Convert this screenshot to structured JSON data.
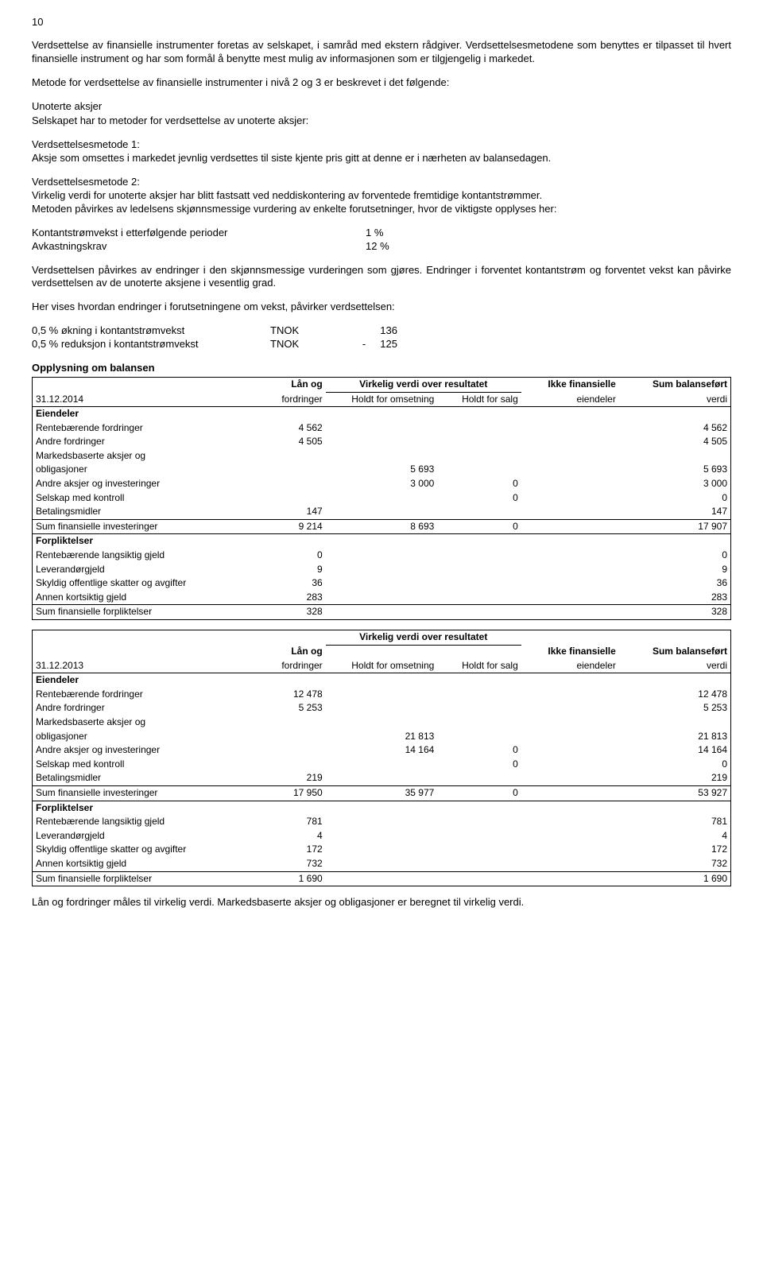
{
  "pageNumber": "10",
  "paragraphs": {
    "p1": "Verdsettelse av finansielle instrumenter foretas av selskapet, i samråd med ekstern rådgiver. Verdsettelsesmetodene som benyttes er tilpasset til hvert finansielle instrument og har som formål å benytte mest mulig av informasjonen som er tilgjengelig i markedet.",
    "p2": "Metode for verdsettelse av finansielle instrumenter i nivå 2 og 3 er beskrevet i det følgende:",
    "unoterte_title": "Unoterte aksjer",
    "unoterte_intro": "Selskapet har to metoder for verdsettelse av unoterte aksjer:",
    "method1_title": "Verdsettelsesmetode 1:",
    "method1_text": "Aksje som omsettes i markedet jevnlig verdsettes til siste kjente pris gitt at denne er i nærheten av balansedagen.",
    "method2_title": "Verdsettelsesmetode 2:",
    "method2_text1": "Virkelig verdi for unoterte aksjer har blitt fastsatt ved neddiskontering av forventede fremtidige kontantstrømmer.",
    "method2_text2": "Metoden påvirkes av ledelsens skjønnsmessige vurdering av enkelte forutsetninger, hvor de viktigste opplyses her:",
    "assumption1_label": "Kontantstrømvekst i etterfølgende perioder",
    "assumption1_value": "1 %",
    "assumption2_label": "Avkastningskrav",
    "assumption2_value": "12 %",
    "p3": "Verdsettelsen påvirkes av endringer i den skjønnsmessige vurderingen som gjøres. Endringer i forventet kontantstrøm og forventet vekst kan påvirke verdsettelsen av de unoterte aksjene i vesentlig grad.",
    "p4": "Her vises hvordan endringer i forutsetningene om vekst, påvirker verdsettelsen:",
    "sens1_label": "0,5 % økning i kontantstrømvekst",
    "sens1_curr": "TNOK",
    "sens1_val": "136",
    "sens2_label": "0,5 % reduksjon i kontantstrømvekst",
    "sens2_curr": "TNOK",
    "sens2_val": "-     125",
    "balance_title": "Opplysning om balansen"
  },
  "table2014": {
    "date": "31.12.2014",
    "headers": {
      "h1": "Lån og fordringer",
      "h2top": "Virkelig verdi over resultatet",
      "h2a": "Holdt for omsetning",
      "h2b": "Holdt for salg",
      "h3": "Ikke finansielle eiendeler",
      "h4": "Sum balanseført verdi"
    },
    "eiendeler_label": "Eiendeler",
    "rows": [
      {
        "label": "Rentebærende fordringer",
        "c1": "4 562",
        "c2": "",
        "c3": "",
        "c4": "",
        "c5": "4 562"
      },
      {
        "label": "Andre fordringer",
        "c1": "4 505",
        "c2": "",
        "c3": "",
        "c4": "",
        "c5": "4 505"
      },
      {
        "label": "Markedsbaserte aksjer og",
        "c1": "",
        "c2": "",
        "c3": "",
        "c4": "",
        "c5": ""
      },
      {
        "label": "obligasjoner",
        "c1": "",
        "c2": "5 693",
        "c3": "",
        "c4": "",
        "c5": "5 693"
      },
      {
        "label": "Andre aksjer og investeringer",
        "c1": "",
        "c2": "3 000",
        "c3": "0",
        "c4": "",
        "c5": "3 000"
      },
      {
        "label": "Selskap med kontroll",
        "c1": "",
        "c2": "",
        "c3": "0",
        "c4": "",
        "c5": "0"
      },
      {
        "label": "Betalingsmidler",
        "c1": "147",
        "c2": "",
        "c3": "",
        "c4": "",
        "c5": "147"
      }
    ],
    "sum_eiendeler": {
      "label": "Sum finansielle investeringer",
      "c1": "9 214",
      "c2": "8 693",
      "c3": "0",
      "c4": "",
      "c5": "17 907"
    },
    "forpliktelser_label": "Forpliktelser",
    "rows2": [
      {
        "label": "Rentebærende langsiktig gjeld",
        "c1": "0",
        "c5": "0"
      },
      {
        "label": "Leverandørgjeld",
        "c1": "9",
        "c5": "9"
      },
      {
        "label": "Skyldig offentlige skatter og avgifter",
        "c1": "36",
        "c5": "36"
      },
      {
        "label": "Annen kortsiktig gjeld",
        "c1": "283",
        "c5": "283"
      }
    ],
    "sum_forpliktelser": {
      "label": "Sum finansielle forpliktelser",
      "c1": "328",
      "c5": "328"
    }
  },
  "table2013": {
    "date": "31.12.2013",
    "top_header": "Virkelig verdi over resultatet",
    "headers": {
      "h1": "Lån og fordringer",
      "h2a": "Holdt for omsetning",
      "h2b": "Holdt for salg",
      "h3": "Ikke finansielle eiendeler",
      "h4": "Sum balanseført verdi"
    },
    "eiendeler_label": "Eiendeler",
    "rows": [
      {
        "label": "Rentebærende fordringer",
        "c1": "12 478",
        "c2": "",
        "c3": "",
        "c4": "",
        "c5": "12 478"
      },
      {
        "label": "Andre fordringer",
        "c1": "5 253",
        "c2": "",
        "c3": "",
        "c4": "",
        "c5": "5 253"
      },
      {
        "label": "Markedsbaserte aksjer og",
        "c1": "",
        "c2": "",
        "c3": "",
        "c4": "",
        "c5": ""
      },
      {
        "label": "obligasjoner",
        "c1": "",
        "c2": "21 813",
        "c3": "",
        "c4": "",
        "c5": "21 813"
      },
      {
        "label": "Andre aksjer og investeringer",
        "c1": "",
        "c2": "14 164",
        "c3": "0",
        "c4": "",
        "c5": "14 164"
      },
      {
        "label": "Selskap med kontroll",
        "c1": "",
        "c2": "",
        "c3": "0",
        "c4": "",
        "c5": "0"
      },
      {
        "label": "Betalingsmidler",
        "c1": "219",
        "c2": "",
        "c3": "",
        "c4": "",
        "c5": "219"
      }
    ],
    "sum_eiendeler": {
      "label": "Sum finansielle investeringer",
      "c1": "17 950",
      "c2": "35 977",
      "c3": "0",
      "c4": "",
      "c5": "53 927"
    },
    "forpliktelser_label": "Forpliktelser",
    "rows2": [
      {
        "label": "Rentebærende langsiktig gjeld",
        "c1": "781",
        "c5": "781"
      },
      {
        "label": "Leverandørgjeld",
        "c1": "4",
        "c5": "4"
      },
      {
        "label": "Skyldig offentlige skatter og avgifter",
        "c1": "172",
        "c5": "172"
      },
      {
        "label": "Annen kortsiktig gjeld",
        "c1": "732",
        "c5": "732"
      }
    ],
    "sum_forpliktelser": {
      "label": "Sum finansielle forpliktelser",
      "c1": "1 690",
      "c5": "1 690"
    }
  },
  "footer": "Lån og fordringer måles til virkelig verdi. Markedsbaserte aksjer og obligasjoner er beregnet til virkelig verdi."
}
